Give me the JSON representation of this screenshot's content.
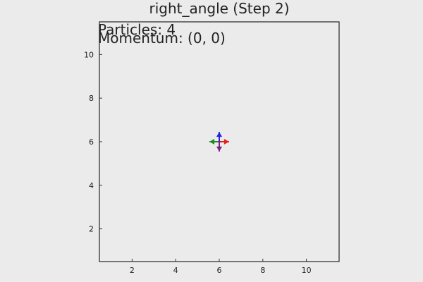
{
  "chart_data": {
    "type": "scatter",
    "title": "right_angle (Step 2)",
    "annotations": [
      "Particles: 4",
      "Momentum: (0, 0)"
    ],
    "xlim": [
      0.5,
      11.5
    ],
    "ylim": [
      0.5,
      11.5
    ],
    "xticks": [
      2,
      4,
      6,
      8,
      10
    ],
    "yticks": [
      2,
      4,
      6,
      8,
      10
    ],
    "grid": false,
    "particles": [
      {
        "x": 6,
        "y": 6,
        "dx": 0.45,
        "dy": 0,
        "color": "#e8201c"
      },
      {
        "x": 6,
        "y": 6,
        "dx": -0.45,
        "dy": 0,
        "color": "#1f8a1f"
      },
      {
        "x": 6,
        "y": 6,
        "dx": 0,
        "dy": 0.45,
        "color": "#2323e8"
      },
      {
        "x": 6,
        "y": 6,
        "dx": 0,
        "dy": -0.45,
        "color": "#7a1f8a"
      }
    ]
  },
  "colors": {
    "background": "#ebebeb",
    "axes": "#222222"
  }
}
